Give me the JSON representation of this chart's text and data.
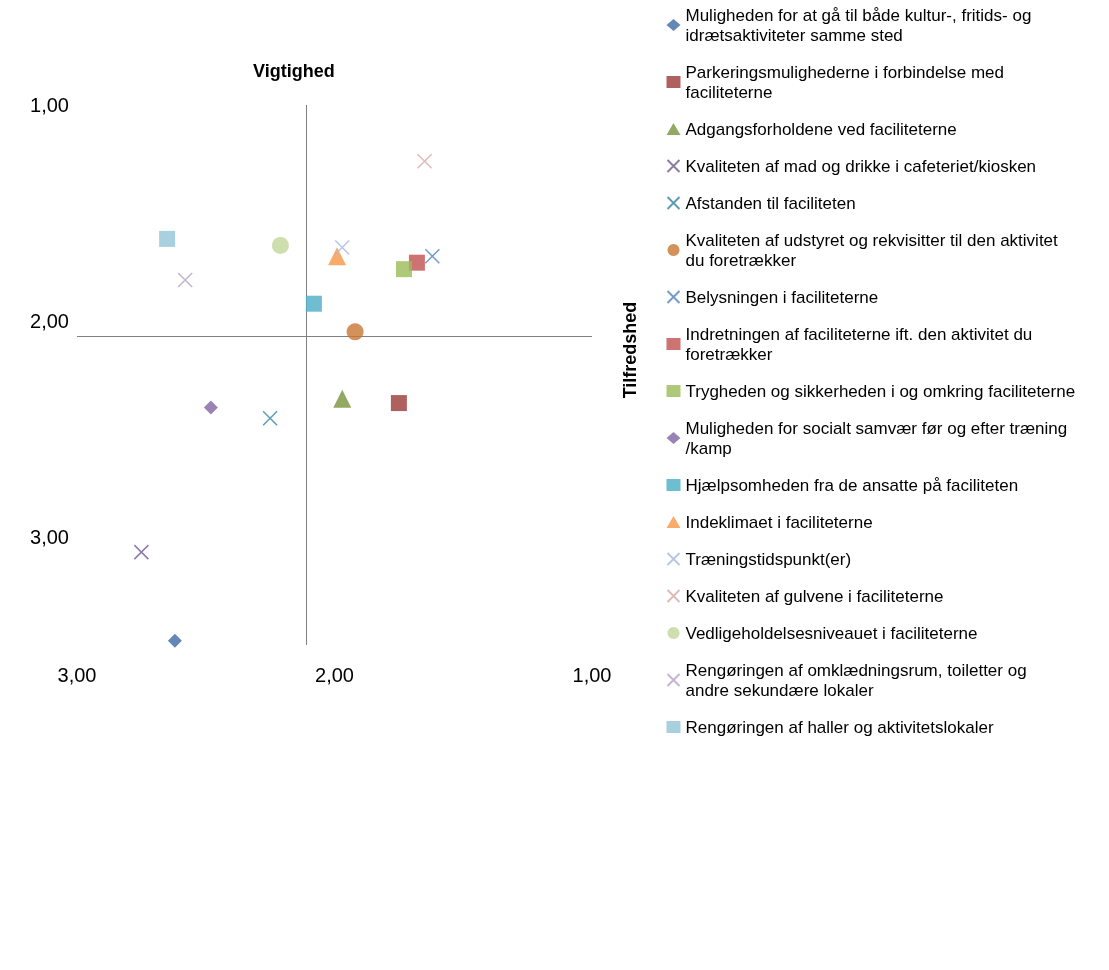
{
  "chart_data": {
    "type": "scatter",
    "xlabel": "Vigtighed",
    "ylabel": "Tilfredshed",
    "xlim": [
      3,
      1
    ],
    "xticks": [
      {
        "value": 3,
        "label": "3,00"
      },
      {
        "value": 2,
        "label": "2,00"
      },
      {
        "value": 1,
        "label": "1,00"
      }
    ],
    "ylim": [
      3.5,
      1
    ],
    "yticks": [
      {
        "value": 1,
        "label": "1,00"
      },
      {
        "value": 2,
        "label": "2,00"
      },
      {
        "value": 3,
        "label": "3,00"
      }
    ],
    "grid": false,
    "legend": "right",
    "ref_lines": [
      {
        "axis": "x",
        "value": 2.11,
        "color": "#808080"
      },
      {
        "axis": "y",
        "value": 2.07,
        "color": "#808080"
      }
    ],
    "series": [
      {
        "name": "Muligheden for at gå til både kultur-, fritids- og idrætsaktiviteter samme sted",
        "color": "#3c6aa5",
        "marker": "diamond",
        "x": [
          2.62
        ],
        "values": [
          3.48
        ]
      },
      {
        "name": "Parkeringsmulighederne i forbindelse med faciliteterne",
        "color": "#9b3a38",
        "marker": "square",
        "x": [
          1.75
        ],
        "values": [
          2.38
        ]
      },
      {
        "name": "Adgangsforholdene ved faciliteterne",
        "color": "#77933c",
        "marker": "triangle",
        "x": [
          1.97
        ],
        "values": [
          2.36
        ]
      },
      {
        "name": "Kvaliteten af mad og drikke i cafeteriet/kiosken",
        "color": "#6e5a8e",
        "marker": "cross",
        "x": [
          2.75
        ],
        "values": [
          3.07
        ]
      },
      {
        "name": "Afstanden til faciliteten",
        "color": "#31859c",
        "marker": "cross",
        "x": [
          2.25
        ],
        "values": [
          2.45
        ]
      },
      {
        "name": "Kvaliteten af udstyret og rekvisitter til den aktivitet du foretrækker",
        "color": "#c87533",
        "marker": "circle",
        "x": [
          1.92
        ],
        "values": [
          2.05
        ]
      },
      {
        "name": "Belysningen i faciliteterne",
        "color": "#4f81bd",
        "marker": "cross",
        "x": [
          1.62
        ],
        "values": [
          1.7
        ]
      },
      {
        "name": "Indretningen af faciliteterne ift. den aktivitet du foretrækker",
        "color": "#c0504d",
        "marker": "square",
        "x": [
          1.68
        ],
        "values": [
          1.73
        ]
      },
      {
        "name": "Trygheden og sikkerheden i og omkring faciliteterne",
        "color": "#9bbb59",
        "marker": "square",
        "x": [
          1.73
        ],
        "values": [
          1.76
        ]
      },
      {
        "name": "Muligheden for socialt samvær før og efter træning/kamp",
        "color": "#8064a2",
        "marker": "diamond",
        "x": [
          2.48
        ],
        "values": [
          2.4
        ]
      },
      {
        "name": "Hjælpsomheden fra de ansatte på faciliteten",
        "color": "#4bacc6",
        "marker": "square",
        "x": [
          2.08
        ],
        "values": [
          1.92
        ]
      },
      {
        "name": "Indeklimaet i faciliteterne",
        "color": "#f79646",
        "marker": "triangle",
        "x": [
          1.99
        ],
        "values": [
          1.7
        ]
      },
      {
        "name": "Træningstidspunkt(er)",
        "color": "#a6b9d9",
        "marker": "cross",
        "x": [
          1.97
        ],
        "values": [
          1.66
        ]
      },
      {
        "name": "Kvaliteten af gulvene i faciliteterne",
        "color": "#dba8a7",
        "marker": "cross",
        "x": [
          1.65
        ],
        "values": [
          1.26
        ]
      },
      {
        "name": "Vedligeholdelsesniveauet i faciliteterne",
        "color": "#c3d69b",
        "marker": "circle",
        "x": [
          2.21
        ],
        "values": [
          1.65
        ]
      },
      {
        "name": "Rengøringen af omklædningsrum, toiletter og andre sekundære lokaler",
        "color": "#b3a2c7",
        "marker": "cross",
        "x": [
          2.58
        ],
        "values": [
          1.81
        ]
      },
      {
        "name": "Rengøringen af haller og aktivitetslokaler",
        "color": "#93c4d6",
        "marker": "square",
        "x": [
          2.65
        ],
        "values": [
          1.62
        ]
      }
    ]
  }
}
